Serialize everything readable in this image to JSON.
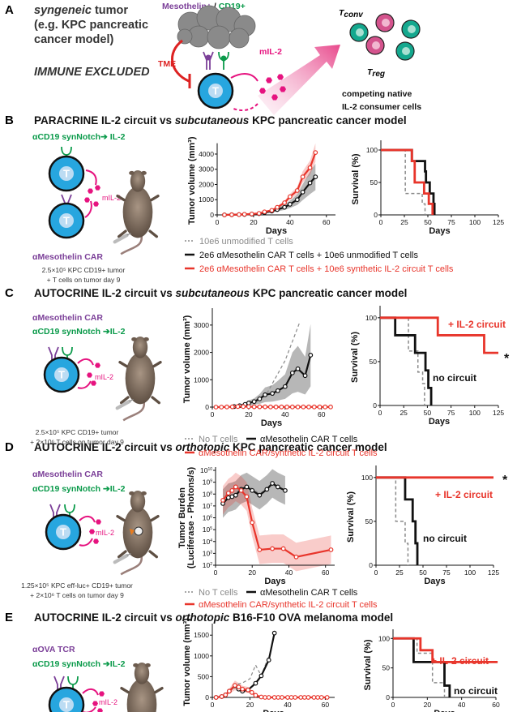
{
  "panel_a": {
    "label": "A",
    "tumor_line1_italic": "syngeneic",
    "tumor_line1_rest": " tumor",
    "tumor_line2": "(e.g. KPC pancreatic",
    "tumor_line3": "cancer model)",
    "immune_excluded": "IMMUNE EXCLUDED",
    "antigen_mesothelin": "Mesothelin+",
    "antigen_sep": " / ",
    "antigen_cd19": "CD19+",
    "tme": "TME",
    "cytokine": "mIL-2",
    "tcell_letter": "T",
    "tconv": "T",
    "tconv_sub": "conv",
    "treg": "T",
    "treg_sub": "reg",
    "competing_line1": "competing native",
    "competing_line2": "IL-2 consumer cells"
  },
  "panels": {
    "B": {
      "label": "B",
      "title_pre": "PARACRINE IL-2 circuit vs ",
      "title_italic": "subcutaneous",
      "title_post": " KPC pancreatic cancer model",
      "receptor1": "αCD19 synNotch➔ IL-2",
      "receptor2": "αMesothelin CAR",
      "cytokine": "mIL-2",
      "caption1": "2.5×10⁵ KPC CD19+ tumor",
      "caption2": "+ T cells on tumor day 9",
      "legend": [
        "10e6 unmodified T cells",
        "2e6 αMesothelin CAR T cells + 10e6 unmodified T cells",
        "2e6 αMesothelin CAR T cells + 10e6 synthetic IL-2 circuit T cells"
      ]
    },
    "C": {
      "label": "C",
      "title_pre": "AUTOCRINE IL-2 circuit vs ",
      "title_italic": "subcutaneous",
      "title_post": " KPC pancreatic cancer model",
      "receptor1": "αMesothelin CAR",
      "receptor2": "αCD19 synNotch ➔IL-2",
      "cytokine": "mIL-2",
      "caption1": "2.5×10⁵ KPC CD19+ tumor",
      "caption2": "+ 2×10⁶ T cells on tumor day 9",
      "legend": [
        "No T cells",
        "αMesothelin CAR T cells",
        "αMesothelin CAR/synthetic IL-2 circuit T cells"
      ],
      "annot_circuit": "+ IL-2 circuit",
      "annot_nocircuit": "no circuit",
      "annot_sig": "*"
    },
    "D": {
      "label": "D",
      "title_pre": "AUTOCRINE IL-2 circuit vs ",
      "title_italic": "orthotopic",
      "title_post": " KPC pancreatic cancer model",
      "receptor1": "αMesothelin CAR",
      "receptor2": "αCD19 synNotch ➔IL-2",
      "cytokine": "mIL-2",
      "caption1": "1.25×10⁵ KPC eff-luc+ CD19+ tumor",
      "caption2": "+ 2×10⁶ T cells on tumor day 9",
      "legend": [
        "No T cells",
        "αMesothelin CAR T cells",
        "αMesothelin CAR/synthetic IL-2 circuit T cells"
      ],
      "annot_circuit": "+ IL-2 circuit",
      "annot_nocircuit": "no circuit",
      "annot_sig": "*"
    },
    "E": {
      "label": "E",
      "title_pre": "AUTOCRINE IL-2 circuit vs ",
      "title_italic": "orthotopic",
      "title_post": " B16-F10 OVA melanoma model",
      "receptor1": "αOVA TCR",
      "receptor2": "αCD19 synNotch ➔IL-2",
      "cytokine": "mIL-2",
      "annot_circuit": "+ IL-2 circuit",
      "annot_nocircuit": "no circuit"
    }
  },
  "colors": {
    "red": "#e8352b",
    "black": "#111111",
    "grey": "#8a8a8a",
    "purple": "#7b3f98",
    "green": "#0a9a4a",
    "pink": "#e6137f",
    "tcell": "#27a6df",
    "teal": "#14a88e"
  },
  "chart_data": [
    {
      "id": "B-tumor",
      "type": "line",
      "xlabel": "Days",
      "ylabel": "Tumor volume (mm³)",
      "xlim": [
        0,
        65
      ],
      "ylim": [
        0,
        4500
      ],
      "xticks": [
        0,
        20,
        40,
        60
      ],
      "yticks": [
        0,
        1000,
        2000,
        3000,
        4000
      ],
      "series": [
        {
          "name": "2e6 αMesothelin CAR T cells + 10e6 unmodified T cells",
          "color": "#111111",
          "markers": true,
          "band": 0.35,
          "x": [
            4,
            8,
            12,
            15,
            19,
            23,
            26,
            30,
            33,
            37,
            40,
            44,
            47,
            51,
            54
          ],
          "y": [
            0,
            10,
            20,
            30,
            50,
            80,
            150,
            250,
            350,
            500,
            700,
            1000,
            1500,
            2100,
            2500
          ]
        },
        {
          "name": "2e6 αMesothelin CAR T cells + 10e6 synthetic IL-2 circuit T cells",
          "color": "#e8352b",
          "markers": true,
          "band": 0.15,
          "x": [
            4,
            8,
            12,
            15,
            19,
            23,
            26,
            30,
            33,
            37,
            40,
            44,
            47,
            51,
            54
          ],
          "y": [
            0,
            10,
            20,
            40,
            60,
            100,
            200,
            300,
            500,
            800,
            1200,
            1600,
            2500,
            3100,
            4100
          ]
        }
      ]
    },
    {
      "id": "B-survival",
      "type": "step",
      "xlabel": "Days",
      "ylabel": "Survival (%)",
      "xlim": [
        0,
        125
      ],
      "ylim": [
        0,
        110
      ],
      "xticks": [
        0,
        25,
        50,
        75,
        100,
        125
      ],
      "yticks": [
        0,
        50,
        100
      ],
      "series": [
        {
          "name": "10e6 unmodified T cells",
          "color": "#8a8a8a",
          "dash": true,
          "x": [
            0,
            26,
            44,
            47
          ],
          "y": [
            100,
            33,
            17,
            0
          ]
        },
        {
          "name": "2e6 αMesothelin CAR T cells + 10e6 unmodified T cells",
          "color": "#111111",
          "x": [
            0,
            33,
            47,
            48,
            52,
            56,
            57
          ],
          "y": [
            100,
            83,
            67,
            50,
            33,
            17,
            0
          ]
        },
        {
          "name": "2e6 αMesothelin CAR T cells + 10e6 synthetic IL-2 circuit T cells",
          "color": "#e8352b",
          "x": [
            0,
            33,
            36,
            46,
            51,
            55
          ],
          "y": [
            100,
            83,
            50,
            33,
            17,
            0
          ]
        }
      ]
    },
    {
      "id": "C-tumor",
      "type": "line",
      "xlabel": "Days",
      "ylabel": "Tumor volume (mm³)",
      "xlim": [
        0,
        65
      ],
      "ylim": [
        0,
        3500
      ],
      "xticks": [
        0,
        20,
        40,
        60
      ],
      "yticks": [
        0,
        1000,
        2000,
        3000
      ],
      "series": [
        {
          "name": "No T cells",
          "color": "#8a8a8a",
          "dash": true,
          "x": [
            10,
            20,
            30,
            40,
            48
          ],
          "y": [
            0,
            100,
            500,
            1700,
            3100
          ]
        },
        {
          "name": "αMesothelin CAR T cells",
          "color": "#111111",
          "markers": true,
          "band": 0.6,
          "x": [
            12,
            15,
            18,
            20,
            23,
            26,
            29,
            33,
            36,
            40,
            44,
            47,
            51,
            54
          ],
          "y": [
            20,
            50,
            100,
            150,
            200,
            300,
            450,
            500,
            600,
            750,
            1250,
            1400,
            1150,
            1900
          ]
        },
        {
          "name": "αMesothelin CAR/synthetic IL-2 circuit T cells",
          "color": "#e8352b",
          "markers": true,
          "x": [
            2,
            5,
            8,
            11,
            14,
            17,
            20,
            23,
            26,
            29,
            32,
            35,
            38,
            41,
            44,
            47,
            50,
            53,
            56,
            59,
            62,
            65
          ],
          "y": [
            0,
            0,
            5,
            10,
            20,
            20,
            15,
            10,
            10,
            10,
            5,
            5,
            5,
            5,
            5,
            5,
            5,
            5,
            5,
            5,
            5,
            5
          ]
        }
      ]
    },
    {
      "id": "C-survival",
      "type": "step",
      "xlabel": "Days",
      "ylabel": "Survival (%)",
      "xlim": [
        0,
        125
      ],
      "ylim": [
        0,
        110
      ],
      "xticks": [
        0,
        25,
        50,
        75,
        100,
        125
      ],
      "yticks": [
        0,
        50,
        100
      ],
      "series": [
        {
          "name": "No T cells",
          "color": "#8a8a8a",
          "dash": true,
          "x": [
            0,
            30,
            40,
            45,
            47
          ],
          "y": [
            100,
            62,
            38,
            25,
            0
          ]
        },
        {
          "name": "αMesothelin CAR T cells",
          "color": "#111111",
          "x": [
            0,
            16,
            37,
            48,
            51,
            54
          ],
          "y": [
            100,
            80,
            60,
            40,
            20,
            0
          ]
        },
        {
          "name": "αMesothelin CAR/synthetic IL-2 circuit T cells",
          "color": "#e8352b",
          "x": [
            0,
            61,
            110,
            125
          ],
          "y": [
            100,
            80,
            60,
            60
          ]
        }
      ]
    },
    {
      "id": "D-tumor",
      "type": "line",
      "yscale": "log",
      "xlabel": "Days",
      "ylabel": "Tumor Burden",
      "ylabel2": "(Luciferase - Photons/s)",
      "xlim": [
        0,
        65
      ],
      "ylim": [
        100.0,
        10000000000.0
      ],
      "xticks": [
        0,
        20,
        40,
        60
      ],
      "yticks": [
        100.0,
        1000.0,
        10000.0,
        100000.0,
        1000000.0,
        10000000.0,
        100000000.0,
        1000000000.0,
        10000000000.0
      ],
      "series": [
        {
          "name": "No T cells",
          "color": "#8a8a8a",
          "dash": true,
          "x": [
            4,
            7,
            9,
            11,
            14,
            17,
            20,
            24,
            28,
            31,
            34,
            38
          ],
          "y": [
            20000000.0,
            60000000.0,
            80000000.0,
            120000000.0,
            300000000.0,
            500000000.0,
            300000000.0,
            100000000.0,
            300000000.0,
            600000000.0,
            400000000.0,
            200000000.0
          ]
        },
        {
          "name": "αMesothelin CAR T cells",
          "color": "#111111",
          "markers": true,
          "band": 0.6,
          "x": [
            4,
            7,
            9,
            11,
            14,
            17,
            20,
            24,
            28,
            31,
            34,
            38
          ],
          "y": [
            16000000.0,
            50000000.0,
            60000000.0,
            80000000.0,
            250000000.0,
            400000000.0,
            200000000.0,
            80000000.0,
            250000000.0,
            800000000.0,
            400000000.0,
            200000000.0
          ]
        },
        {
          "name": "αMesothelin CAR/synthetic IL-2 circuit T cells",
          "color": "#e8352b",
          "markers": true,
          "band": 0.6,
          "x": [
            4,
            7,
            9,
            11,
            14,
            17,
            20,
            24,
            31,
            37,
            44,
            63
          ],
          "y": [
            30000000.0,
            120000000.0,
            200000000.0,
            400000000.0,
            200000000.0,
            60000000.0,
            400000.0,
            2000.0,
            2500.0,
            2500.0,
            500.0,
            2000.0
          ]
        }
      ]
    },
    {
      "id": "D-survival",
      "type": "step",
      "xlabel": "Days",
      "ylabel": "Survival (%)",
      "xlim": [
        0,
        125
      ],
      "ylim": [
        0,
        110
      ],
      "xticks": [
        0,
        25,
        50,
        75,
        100,
        125
      ],
      "yticks": [
        0,
        50,
        100
      ],
      "series": [
        {
          "name": "No T cells",
          "color": "#8a8a8a",
          "dash": true,
          "x": [
            0,
            21,
            31,
            34
          ],
          "y": [
            100,
            50,
            25,
            0
          ]
        },
        {
          "name": "αMesothelin CAR T cells",
          "color": "#111111",
          "x": [
            0,
            31,
            39,
            42,
            44
          ],
          "y": [
            100,
            75,
            50,
            25,
            0
          ]
        },
        {
          "name": "αMesothelin CAR/synthetic IL-2 circuit T cells",
          "color": "#e8352b",
          "x": [
            0,
            125
          ],
          "y": [
            100,
            100
          ]
        }
      ]
    },
    {
      "id": "E-tumor",
      "type": "line",
      "xlabel": "Days",
      "ylabel": "Tumor volume (mm³)",
      "xlim": [
        0,
        65
      ],
      "ylim": [
        0,
        1700
      ],
      "xticks": [
        0,
        20,
        40,
        60
      ],
      "yticks": [
        0,
        500,
        1000,
        1500
      ],
      "series": [
        {
          "name": "No T cells",
          "color": "#8a8a8a",
          "dash": true,
          "x": [
            9,
            12,
            16,
            20,
            23,
            26,
            30
          ],
          "y": [
            150,
            300,
            350,
            450,
            780,
            520,
            1000
          ]
        },
        {
          "name": "αMesothelin CAR T cells",
          "color": "#111111",
          "markers": true,
          "x": [
            2,
            5,
            7,
            9,
            12,
            14,
            16,
            19,
            23,
            26,
            30,
            33
          ],
          "y": [
            0,
            20,
            60,
            150,
            280,
            200,
            150,
            180,
            340,
            520,
            900,
            1550
          ]
        },
        {
          "name": "αMesothelin CAR/synthetic IL-2 circuit T cells",
          "color": "#e8352b",
          "markers": true,
          "band": 0.4,
          "x": [
            2,
            5,
            7,
            9,
            12,
            14,
            16,
            19,
            21,
            23,
            26,
            28,
            30,
            33,
            35,
            37,
            40,
            42,
            44,
            47,
            49,
            51,
            54,
            56,
            58,
            61
          ],
          "y": [
            0,
            20,
            60,
            150,
            290,
            250,
            200,
            180,
            120,
            50,
            10,
            0,
            0,
            0,
            0,
            0,
            0,
            0,
            0,
            0,
            0,
            0,
            0,
            0,
            0,
            0
          ]
        }
      ]
    },
    {
      "id": "E-survival",
      "type": "step",
      "xlabel": "Days",
      "ylabel": "Survival (%)",
      "xlim": [
        0,
        60
      ],
      "ylim": [
        0,
        110
      ],
      "xticks": [
        0,
        20,
        40,
        60
      ],
      "yticks": [
        0,
        50,
        100
      ],
      "series": [
        {
          "name": "No T cells",
          "color": "#8a8a8a",
          "dash": true,
          "x": [
            0,
            14,
            23,
            29,
            30
          ],
          "y": [
            100,
            75,
            25,
            25,
            0
          ]
        },
        {
          "name": "αMesothelin CAR T cells",
          "color": "#111111",
          "x": [
            0,
            12,
            30,
            33
          ],
          "y": [
            100,
            60,
            20,
            0
          ]
        },
        {
          "name": "αMesothelin CAR/synthetic IL-2 circuit T cells",
          "color": "#e8352b",
          "x": [
            0,
            16,
            23,
            61
          ],
          "y": [
            100,
            80,
            60,
            60
          ]
        }
      ]
    }
  ]
}
